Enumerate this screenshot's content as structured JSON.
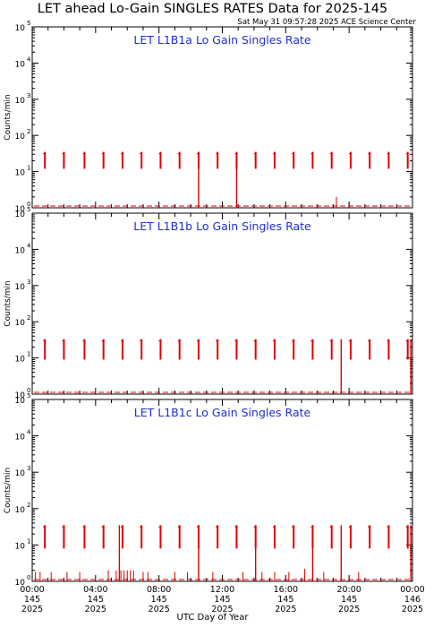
{
  "title": "LET ahead Lo-Gain SINGLES RATES Data for 2025-145",
  "timestamp": "Sat May 31 09:57:28 2025 ACE Science Center",
  "ylabel": "Counts/min",
  "xlabel": "UTC Day of Year",
  "colors": {
    "panel_title": "#1f2fd6",
    "data": "#e00000",
    "frame": "#000000"
  },
  "chart_data": [
    {
      "type": "line",
      "title": "LET L1B1a Lo Gain Singles Rate",
      "y_scale": "log",
      "ylim": [
        1,
        100000
      ],
      "xlim_hours": [
        0,
        24
      ],
      "burst_hours": [
        0.8,
        2.0,
        3.3,
        4.5,
        5.7,
        6.9,
        8.1,
        9.3,
        10.5,
        11.7,
        12.9,
        14.1,
        15.3,
        16.5,
        17.7,
        18.9,
        20.1,
        21.3,
        22.5,
        23.7
      ],
      "burst_low": 12,
      "burst_high": 35,
      "dropouts_hours": [
        10.5,
        12.9
      ],
      "spikes": [
        {
          "hour": 19.2,
          "value": 2
        }
      ]
    },
    {
      "type": "line",
      "title": "LET L1B1b Lo Gain Singles Rate",
      "y_scale": "log",
      "ylim": [
        1,
        100000
      ],
      "xlim_hours": [
        0,
        24
      ],
      "burst_hours": [
        0.8,
        2.0,
        3.3,
        4.5,
        5.7,
        6.9,
        8.1,
        9.3,
        10.5,
        11.7,
        12.9,
        14.1,
        15.3,
        16.5,
        17.7,
        18.9,
        20.1,
        21.3,
        22.5,
        23.7
      ],
      "burst_low": 9,
      "burst_high": 33,
      "dropouts_hours": [
        19.5,
        23.9
      ],
      "spikes": []
    },
    {
      "type": "line",
      "title": "LET L1B1c Lo Gain Singles Rate",
      "y_scale": "log",
      "ylim": [
        1,
        100000
      ],
      "xlim_hours": [
        0,
        24
      ],
      "burst_hours": [
        0.8,
        2.0,
        3.3,
        4.5,
        5.7,
        6.9,
        8.1,
        9.3,
        10.5,
        11.7,
        12.9,
        14.1,
        15.3,
        16.5,
        17.7,
        18.9,
        20.1,
        21.3,
        22.5,
        23.7
      ],
      "burst_low": 8,
      "burst_high": 35,
      "dropouts_hours": [
        5.5,
        10.5,
        14.1,
        17.7,
        19.5,
        23.9
      ],
      "spikes": [
        {
          "hour": 0.2,
          "value": 1.8
        },
        {
          "hour": 0.5,
          "value": 1.8
        },
        {
          "hour": 1.2,
          "value": 1.8
        },
        {
          "hour": 2.2,
          "value": 1.8
        },
        {
          "hour": 3.0,
          "value": 1.8
        },
        {
          "hour": 4.8,
          "value": 2
        },
        {
          "hour": 5.3,
          "value": 2
        },
        {
          "hour": 5.6,
          "value": 2
        },
        {
          "hour": 5.8,
          "value": 2
        },
        {
          "hour": 6.0,
          "value": 2
        },
        {
          "hour": 6.2,
          "value": 2
        },
        {
          "hour": 6.4,
          "value": 2
        },
        {
          "hour": 7.0,
          "value": 1.8
        },
        {
          "hour": 7.3,
          "value": 1.8
        },
        {
          "hour": 9.0,
          "value": 1.8
        },
        {
          "hour": 9.8,
          "value": 1.8
        },
        {
          "hour": 11.4,
          "value": 1.8
        },
        {
          "hour": 13.3,
          "value": 1.8
        },
        {
          "hour": 14.5,
          "value": 1.8
        },
        {
          "hour": 15.3,
          "value": 1.8
        },
        {
          "hour": 16.2,
          "value": 1.8
        },
        {
          "hour": 17.2,
          "value": 2.2
        },
        {
          "hour": 18.4,
          "value": 1.8
        },
        {
          "hour": 20.6,
          "value": 1.8
        }
      ]
    }
  ],
  "x_ticks": [
    {
      "time": "00:00",
      "day": "145",
      "year": "2025"
    },
    {
      "time": "04:00",
      "day": "145",
      "year": "2025"
    },
    {
      "time": "08:00",
      "day": "145",
      "year": "2025"
    },
    {
      "time": "12:00",
      "day": "145",
      "year": "2025"
    },
    {
      "time": "16:00",
      "day": "145",
      "year": "2025"
    },
    {
      "time": "20:00",
      "day": "145",
      "year": "2025"
    },
    {
      "time": "00:00",
      "day": "146",
      "year": "2025"
    }
  ],
  "y_ticks": [
    "10",
    "10",
    "10",
    "10",
    "10",
    "10"
  ],
  "y_tick_exps": [
    "0",
    "1",
    "2",
    "3",
    "4",
    "5"
  ]
}
